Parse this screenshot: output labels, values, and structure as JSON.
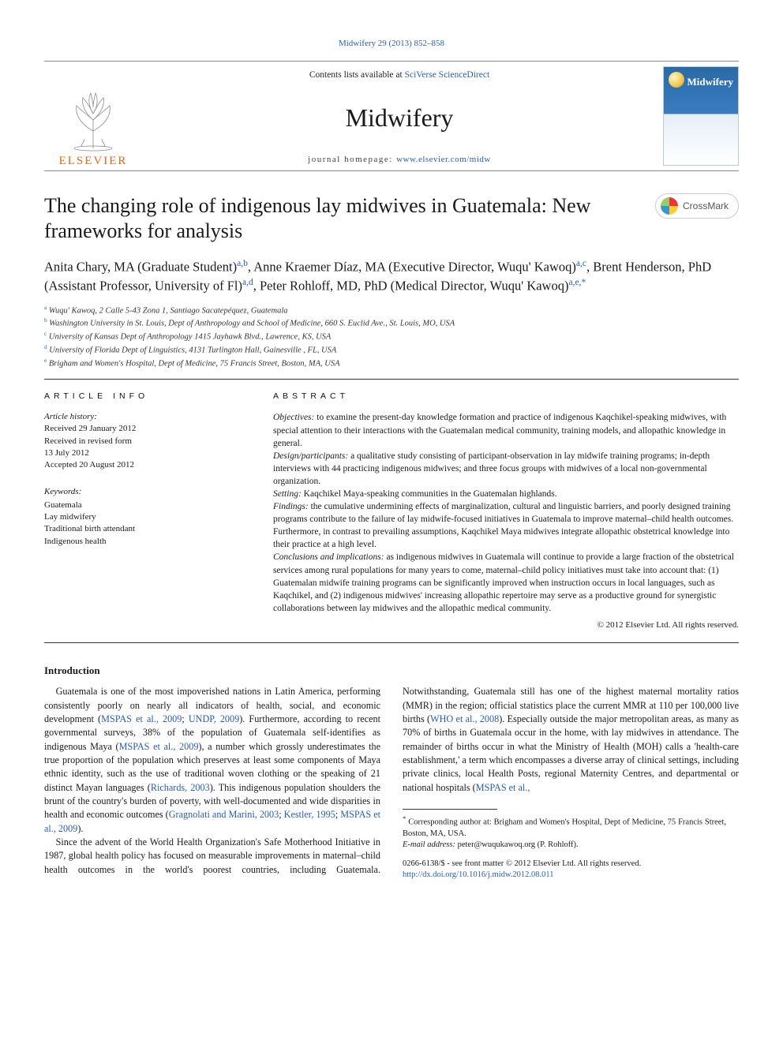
{
  "top_link": {
    "text": "Midwifery 29 (2013) 852–858",
    "href": "#"
  },
  "masthead": {
    "contents_prefix": "Contents lists available at ",
    "contents_link": "SciVerse ScienceDirect",
    "journal_name": "Midwifery",
    "homepage_prefix": "journal homepage: ",
    "homepage_link": "www.elsevier.com/midw",
    "publisher_word": "ELSEVIER",
    "cover_title": "Midwifery"
  },
  "article": {
    "title": "The changing role of indigenous lay midwives in Guatemala: New frameworks for analysis",
    "crossmark_label": "CrossMark"
  },
  "authors_html": "Anita Chary, MA (Graduate Student)<sup>a,b</sup>, Anne Kraemer Díaz, MA (Executive Director, Wuqu' Kawoq)<sup>a,c</sup>, Brent Henderson, PhD (Assistant Professor, University of Fl)<sup>a,d</sup>, Peter Rohloff, MD, PhD (Medical Director, Wuqu' Kawoq)<sup>a,e,*</sup>",
  "affiliations": [
    {
      "label": "a",
      "text": "Wuqu' Kawoq, 2 Calle 5-43 Zona 1, Santiago Sacatepéquez, Guatemala"
    },
    {
      "label": "b",
      "text": "Washington University in St. Louis, Dept of Anthropology and School of Medicine, 660 S. Euclid Ave., St. Louis, MO, USA"
    },
    {
      "label": "c",
      "text": "University of Kansas Dept of Anthropology 1415 Jayhawk Blvd., Lawrence, KS, USA"
    },
    {
      "label": "d",
      "text": "University of Florida Dept of Linguistics, 4131 Turlington Hall, Gainesville , FL, USA"
    },
    {
      "label": "e",
      "text": "Brigham and Women's Hospital, Dept of Medicine, 75 Francis Street, Boston, MA, USA"
    }
  ],
  "article_info": {
    "heading": "ARTICLE INFO",
    "history_label": "Article history:",
    "history": [
      "Received 29 January 2012",
      "Received in revised form",
      "13 July 2012",
      "Accepted 20 August 2012"
    ],
    "keywords_label": "Keywords:",
    "keywords": [
      "Guatemala",
      "Lay midwifery",
      "Traditional birth attendant",
      "Indigenous health"
    ]
  },
  "abstract": {
    "heading": "ABSTRACT",
    "items": [
      {
        "label": "Objectives:",
        "text": " to examine the present-day knowledge formation and practice of indigenous Kaqchikel-speaking midwives, with special attention to their interactions with the Guatemalan medical community, training models, and allopathic knowledge in general."
      },
      {
        "label": "Design/participants:",
        "text": " a qualitative study consisting of participant-observation in lay midwife training programs; in-depth interviews with 44 practicing indigenous midwives; and three focus groups with midwives of a local non-governmental organization."
      },
      {
        "label": "Setting:",
        "text": " Kaqchikel Maya-speaking communities in the Guatemalan highlands."
      },
      {
        "label": "Findings:",
        "text": " the cumulative undermining effects of marginalization, cultural and linguistic barriers, and poorly designed training programs contribute to the failure of lay midwife-focused initiatives in Guatemala to improve maternal–child health outcomes. Furthermore, in contrast to prevailing assumptions, Kaqchikel Maya midwives integrate allopathic obstetrical knowledge into their practice at a high level."
      },
      {
        "label": "Conclusions and implications:",
        "text": " as indigenous midwives in Guatemala will continue to provide a large fraction of the obstetrical services among rural populations for many years to come, maternal–child policy initiatives must take into account that: (1) Guatemalan midwife training programs can be significantly improved when instruction occurs in local languages, such as Kaqchikel, and (2) indigenous midwives' increasing allopathic repertoire may serve as a productive ground for synergistic collaborations between lay midwives and the allopathic medical community."
      }
    ],
    "copyright": "© 2012 Elsevier Ltd. All rights reserved."
  },
  "body": {
    "section_heading": "Introduction",
    "para1_pre": "Guatemala is one of the most impoverished nations in Latin America, performing consistently poorly on nearly all indicators of health, social, and economic development (",
    "para1_link1": "MSPAS et al., 2009",
    "para1_mid1": "; ",
    "para1_link2": "UNDP, 2009",
    "para1_mid2": "). Furthermore, according to recent governmental surveys, 38% of the population of Guatemala self-identifies as indigenous Maya (",
    "para1_link3": "MSPAS et al., 2009",
    "para1_mid3": "), a number which grossly underestimates the true proportion of the population which preserves at least some components of Maya ethnic identity, such as the use of traditional woven clothing or the speaking of 21 distinct Mayan languages (",
    "para1_link4": "Richards, 2003",
    "para1_post": "). This indigenous population shoulders the brunt of the ",
    "para1b_pre": "country's burden of poverty, with well-documented and wide disparities in health and economic outcomes (",
    "para1b_link1": "Gragnolati and Marini, 2003",
    "para1b_mid1": "; ",
    "para1b_link2": "Kestler, 1995",
    "para1b_mid2": "; ",
    "para1b_link3": "MSPAS et al., 2009",
    "para1b_post": ").",
    "para2_pre": "Since the advent of the World Health Organization's Safe Motherhood Initiative in 1987, global health policy has focused on measurable improvements in maternal–child health outcomes in the world's poorest countries, including Guatemala. Notwithstanding, Guatemala still has one of the highest maternal mortality ratios (MMR) in the region; official statistics place the current MMR at 110 per 100,000 live births (",
    "para2_link1": "WHO et al., 2008",
    "para2_mid1": "). Especially outside the major metropolitan areas, as many as 70% of births in Guatemala occur in the home, with lay midwives in attendance. The remainder of births occur in what the Ministry of Health (MOH) calls a 'health-care establishment,' a term which encompasses a diverse array of clinical settings, including private clinics, local Health Posts, regional Maternity Centres, and departmental or national hospitals (",
    "para2_link2": "MSPAS et al.,"
  },
  "footnotes": {
    "corr_symbol": "*",
    "corr_text": " Corresponding author at: Brigham and Women's Hospital, Dept of Medicine, 75 Francis Street, Boston, MA, USA.",
    "email_label": "E-mail address:",
    "email_value": " peter@wuqukawoq.org (P. Rohloff).",
    "issn_line": "0266-6138/$ - see front matter © 2012 Elsevier Ltd. All rights reserved.",
    "doi_line": "http://dx.doi.org/10.1016/j.midw.2012.08.011"
  },
  "colors": {
    "link": "#2a5db0",
    "rule": "#333333",
    "elsevier_orange": "#e06a1a"
  }
}
